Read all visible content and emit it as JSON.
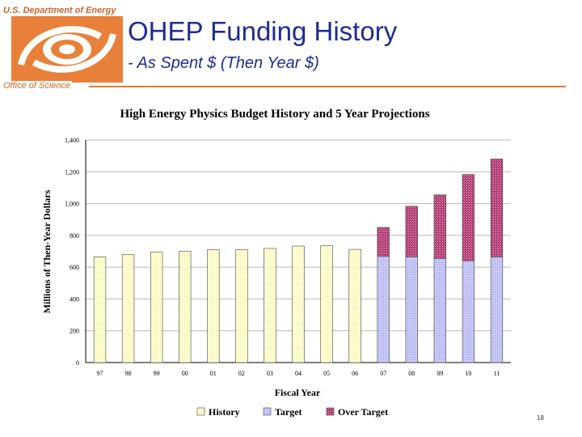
{
  "header": {
    "org_top": "U.S. Department of Energy",
    "org_bottom": "Office of Science",
    "title": "OHEP Funding History",
    "subtitle": "- As Spent $ (Then Year $)"
  },
  "colors": {
    "brand_orange": "#e07a30",
    "title_blue": "#1f2d8c",
    "history": "#ffffd0",
    "target": "#c8c8f8",
    "over_target": "#b03870"
  },
  "page_number": "18",
  "chart_data": {
    "type": "bar",
    "stacked": true,
    "title": "High Energy Physics Budget History and 5 Year Projections",
    "xlabel": "Fiscal Year",
    "ylabel": "Millions of Then-Year Dollars",
    "ylim": [
      0,
      1400
    ],
    "yticks": [
      0,
      200,
      400,
      600,
      800,
      1000,
      1200,
      1400
    ],
    "ytick_labels": [
      "0",
      "200",
      "400",
      "600",
      "800",
      "1,000",
      "1,200",
      "1,400"
    ],
    "categories": [
      "97",
      "98",
      "99",
      "00",
      "01",
      "02",
      "03",
      "04",
      "05",
      "06",
      "07",
      "08",
      "09",
      "10",
      "11"
    ],
    "grid": "horizontal major lines",
    "legend_position": "bottom",
    "series": [
      {
        "name": "History",
        "values": [
          665,
          680,
          695,
          700,
          710,
          710,
          718,
          733,
          735,
          712,
          0,
          0,
          0,
          0,
          0
        ]
      },
      {
        "name": "Target",
        "values": [
          0,
          0,
          0,
          0,
          0,
          0,
          0,
          0,
          0,
          0,
          668,
          665,
          655,
          640,
          665
        ]
      },
      {
        "name": "Over Target",
        "values": [
          0,
          0,
          0,
          0,
          0,
          0,
          0,
          0,
          0,
          0,
          182,
          318,
          400,
          543,
          615
        ]
      }
    ]
  }
}
